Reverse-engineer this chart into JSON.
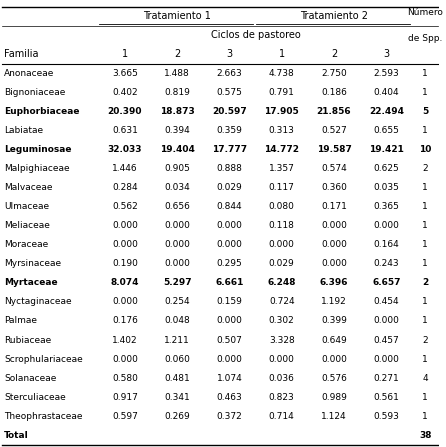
{
  "tratamiento1_label": "Tratamiento 1",
  "tratamiento2_label": "Tratamiento 2",
  "ciclos_label": "Ciclos de pastoreo",
  "col_header_familia": "Familia",
  "numero_line1": "Número",
  "numero_line2": "de Spp.",
  "sub_cols": [
    "1",
    "2",
    "3",
    "1",
    "2",
    "3"
  ],
  "families": [
    "Anonaceae",
    "Bignoniaceae",
    "Euphorbiaceae",
    "Labiatae",
    "Leguminosae",
    "Malpighiaceae",
    "Malvaceae",
    "Ulmaceae",
    "Meliaceae",
    "Moraceae",
    "Myrsinaceae",
    "Myrtaceae",
    "Nyctaginaceae",
    "Palmae",
    "Rubiaceae",
    "Scrophulariaceae",
    "Solanaceae",
    "Sterculiaceae",
    "Theophrastaceae",
    "Total"
  ],
  "bold_families": [
    "Euphorbiaceae",
    "Leguminosae",
    "Myrtaceae"
  ],
  "values": [
    [
      3.665,
      1.488,
      2.663,
      4.738,
      2.75,
      2.593,
      1
    ],
    [
      0.402,
      0.819,
      0.575,
      0.791,
      0.186,
      0.404,
      1
    ],
    [
      20.39,
      18.873,
      20.597,
      17.905,
      21.856,
      22.494,
      5
    ],
    [
      0.631,
      0.394,
      0.359,
      0.313,
      0.527,
      0.655,
      1
    ],
    [
      32.033,
      19.404,
      17.777,
      14.772,
      19.587,
      19.421,
      10
    ],
    [
      1.446,
      0.905,
      0.888,
      1.357,
      0.574,
      0.625,
      2
    ],
    [
      0.284,
      0.034,
      0.029,
      0.117,
      0.36,
      0.035,
      1
    ],
    [
      0.562,
      0.656,
      0.844,
      0.08,
      0.171,
      0.365,
      1
    ],
    [
      0.0,
      0.0,
      0.0,
      0.118,
      0.0,
      0.0,
      1
    ],
    [
      0.0,
      0.0,
      0.0,
      0.0,
      0.0,
      0.164,
      1
    ],
    [
      0.19,
      0.0,
      0.295,
      0.029,
      0.0,
      0.243,
      1
    ],
    [
      8.074,
      5.297,
      6.661,
      6.248,
      6.396,
      6.657,
      2
    ],
    [
      0.0,
      0.254,
      0.159,
      0.724,
      1.192,
      0.454,
      1
    ],
    [
      0.176,
      0.048,
      0.0,
      0.302,
      0.399,
      0.0,
      1
    ],
    [
      1.402,
      1.211,
      0.507,
      3.328,
      0.649,
      0.457,
      2
    ],
    [
      0.0,
      0.06,
      0.0,
      0.0,
      0.0,
      0.0,
      1
    ],
    [
      0.58,
      0.481,
      1.074,
      0.036,
      0.576,
      0.271,
      4
    ],
    [
      0.917,
      0.341,
      0.463,
      0.823,
      0.989,
      0.561,
      1
    ],
    [
      0.597,
      0.269,
      0.372,
      0.714,
      1.124,
      0.593,
      1
    ],
    [
      null,
      null,
      null,
      null,
      null,
      null,
      38
    ]
  ],
  "bold_total": true,
  "bg_color": "#ffffff",
  "text_color": "#000000",
  "font_size": 6.5,
  "header_font_size": 7.0
}
